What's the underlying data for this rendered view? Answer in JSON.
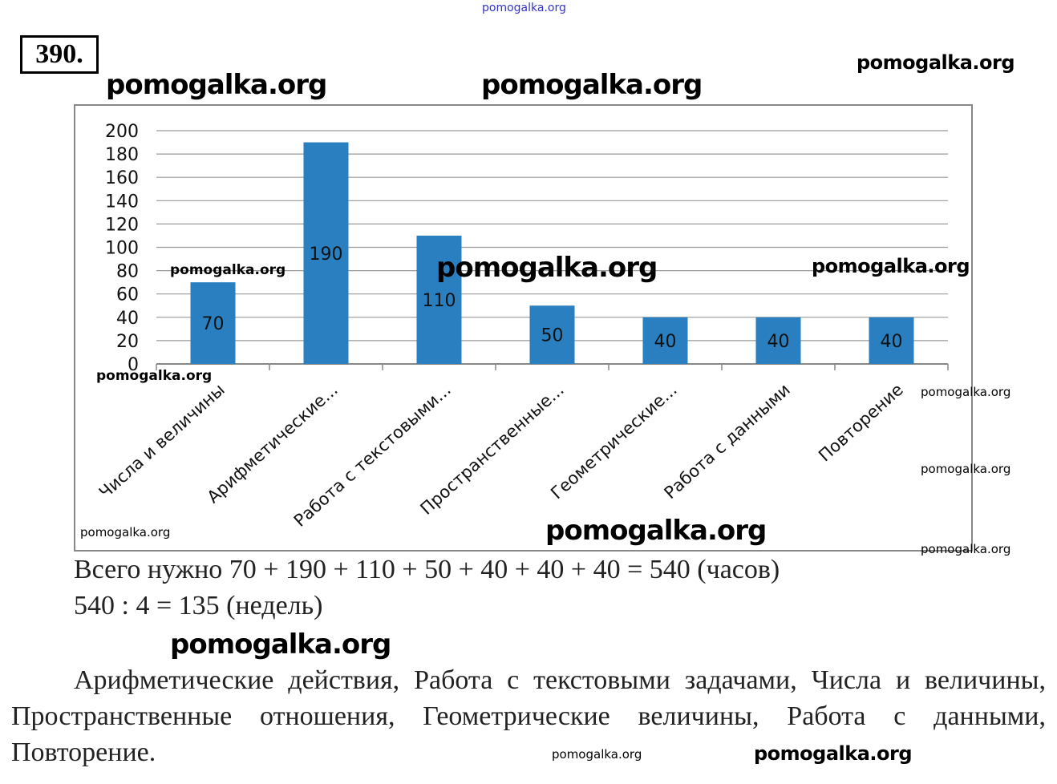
{
  "problem_number": "390.",
  "watermark": "pomogalka.org",
  "chart_data": {
    "type": "bar",
    "categories": [
      "Числа и величины",
      "Арифметические...",
      "Работа с текстовыми...",
      "Пространственные...",
      "Геометрические...",
      "Работа с данными",
      "Повторение"
    ],
    "values": [
      70,
      190,
      110,
      50,
      40,
      40,
      40
    ],
    "data_labels": [
      "70",
      "190",
      "110",
      "50",
      "40",
      "40",
      "40"
    ],
    "y_ticks": [
      "0",
      "20",
      "40",
      "60",
      "80",
      "100",
      "120",
      "140",
      "160",
      "180",
      "200"
    ],
    "ylim": [
      0,
      200
    ],
    "grid": true,
    "legend": "none",
    "bar_color": "#2a7fc1"
  },
  "solution": {
    "line1": "Всего нужно 70 + 190 + 110 + 50 + 40 + 40 + 40 = 540 (часов)",
    "line2": "540 : 4 = 135 (недель)",
    "answer": "Арифметические действия, Работа с текстовыми задачами, Числа и величины, Пространственные отношения, Геометрические величины, Работа с данными, Повторение."
  }
}
